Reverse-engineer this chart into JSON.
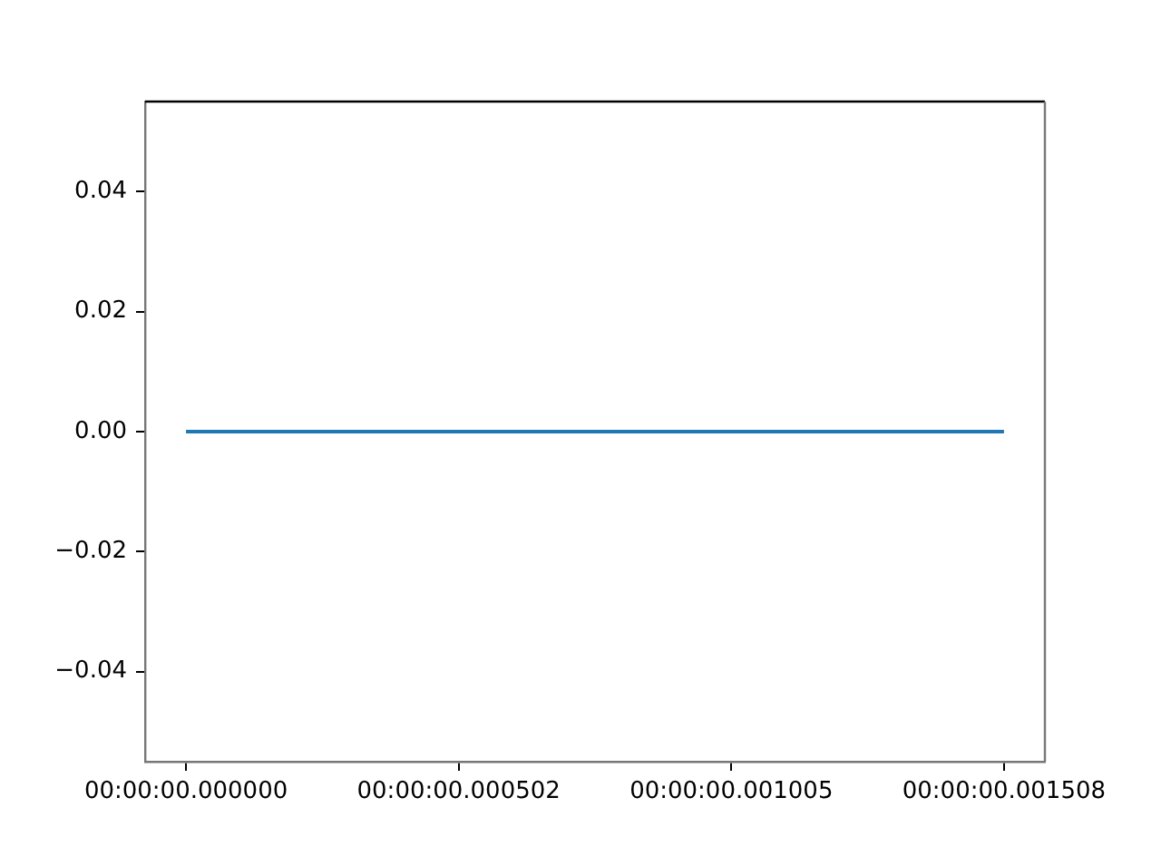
{
  "chart_data": {
    "type": "line",
    "categories": [
      "00:00:00.000000",
      "00:00:00.000502",
      "00:00:00.001005",
      "00:00:00.001508"
    ],
    "series": [
      {
        "color": "#1f77b4",
        "values": [
          0,
          0,
          0,
          0
        ]
      }
    ],
    "ylim": [
      -0.055,
      0.055
    ],
    "yticks": [
      {
        "value": -0.04,
        "label": "−0.04"
      },
      {
        "value": -0.02,
        "label": "−0.02"
      },
      {
        "value": 0,
        "label": "0.00"
      },
      {
        "value": 0.02,
        "label": "0.02"
      },
      {
        "value": 0.04,
        "label": "0.04"
      }
    ],
    "grid": false
  }
}
